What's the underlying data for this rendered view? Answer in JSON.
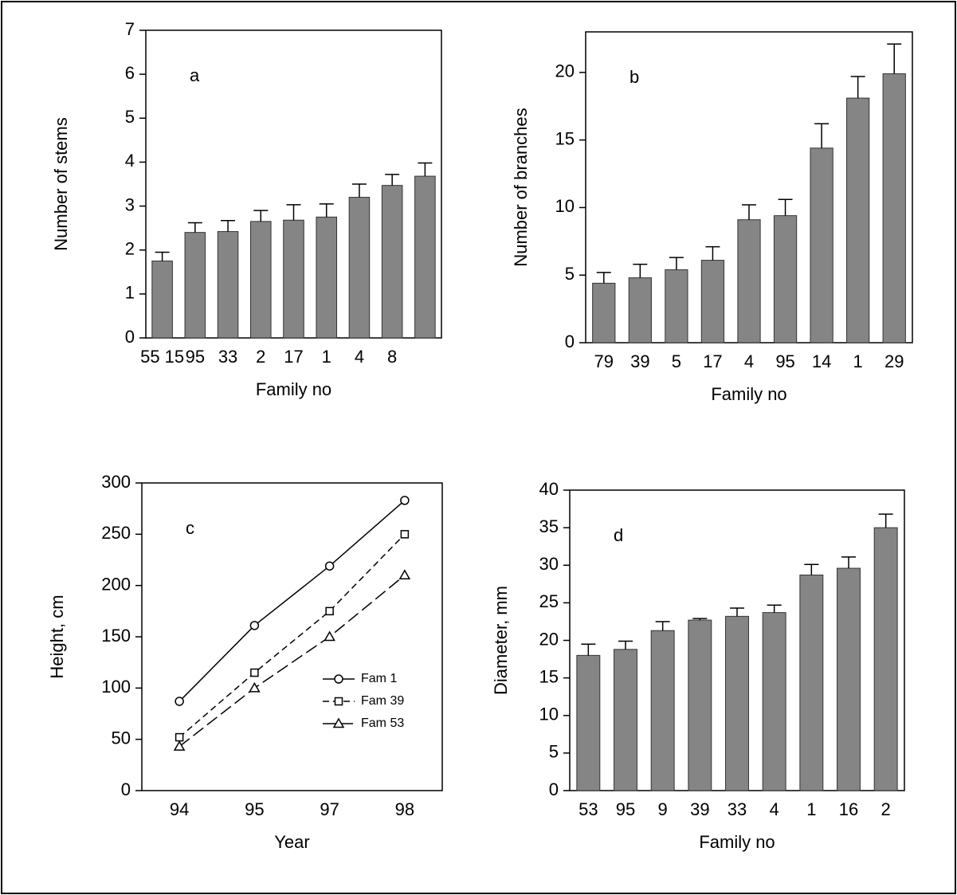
{
  "chart_data": [
    {
      "type": "bar",
      "annotation": "a",
      "ylabel": "Number of stems",
      "xlabel": "Family no",
      "categories": [
        "55 15",
        "95",
        "33",
        "2",
        "17",
        "1",
        "4",
        "8",
        null
      ],
      "values": [
        1.75,
        2.4,
        2.42,
        2.65,
        2.68,
        2.75,
        3.2,
        3.47,
        3.68
      ],
      "errors": [
        0.2,
        0.22,
        0.25,
        0.25,
        0.35,
        0.3,
        0.3,
        0.25,
        0.3
      ],
      "color": "#858585",
      "ylim": [
        0,
        7
      ],
      "yticks": [
        0,
        1,
        2,
        3,
        4,
        5,
        6,
        7
      ]
    },
    {
      "type": "bar",
      "annotation": "b",
      "ylabel": "Number of branches",
      "xlabel": "Family no",
      "categories": [
        "79",
        "39",
        "5",
        "17",
        "4",
        "95",
        "14",
        "1",
        "29"
      ],
      "values": [
        4.4,
        4.8,
        5.4,
        6.1,
        9.1,
        9.4,
        14.4,
        18.1,
        19.9
      ],
      "errors": [
        0.8,
        1.0,
        0.9,
        1.0,
        1.1,
        1.2,
        1.8,
        1.6,
        2.2
      ],
      "color": "#858585",
      "ylim": [
        0,
        23
      ],
      "yticks": [
        0,
        5,
        10,
        15,
        20
      ]
    },
    {
      "type": "line",
      "annotation": "c",
      "ylabel": "Height, cm",
      "xlabel": "Year",
      "categories": [
        "94",
        "95",
        "97",
        "98"
      ],
      "series": [
        {
          "name": "Fam 1",
          "color": "#000000",
          "marker": "circle",
          "dash": "solid",
          "values": [
            87,
            161,
            219,
            283
          ]
        },
        {
          "name": "Fam 39",
          "color": "#000000",
          "marker": "square",
          "dash": "dashed",
          "values": [
            52,
            115,
            175,
            250
          ]
        },
        {
          "name": "Fam 53",
          "color": "#000000",
          "marker": "triangle",
          "dash": "long-dashed",
          "values": [
            43,
            100,
            150,
            210
          ]
        }
      ],
      "legend": "lower right",
      "ylim": [
        0,
        300
      ],
      "yticks": [
        0,
        50,
        100,
        150,
        200,
        250,
        300
      ]
    },
    {
      "type": "bar",
      "annotation": "d",
      "ylabel": "Diameter,  mm",
      "xlabel": "Family  no",
      "categories": [
        "53",
        "95",
        "9",
        "39",
        "33",
        "4",
        "1",
        "16",
        "2"
      ],
      "values": [
        18,
        18.8,
        21.3,
        22.7,
        23.2,
        23.7,
        28.7,
        29.6,
        35
      ],
      "errors": [
        1.5,
        1.1,
        1.2,
        0.2,
        1.1,
        1.0,
        1.4,
        1.5,
        1.8
      ],
      "color": "#858585",
      "ylim": [
        0,
        40
      ],
      "yticks": [
        0,
        5,
        10,
        15,
        20,
        25,
        30,
        35,
        40
      ]
    }
  ]
}
